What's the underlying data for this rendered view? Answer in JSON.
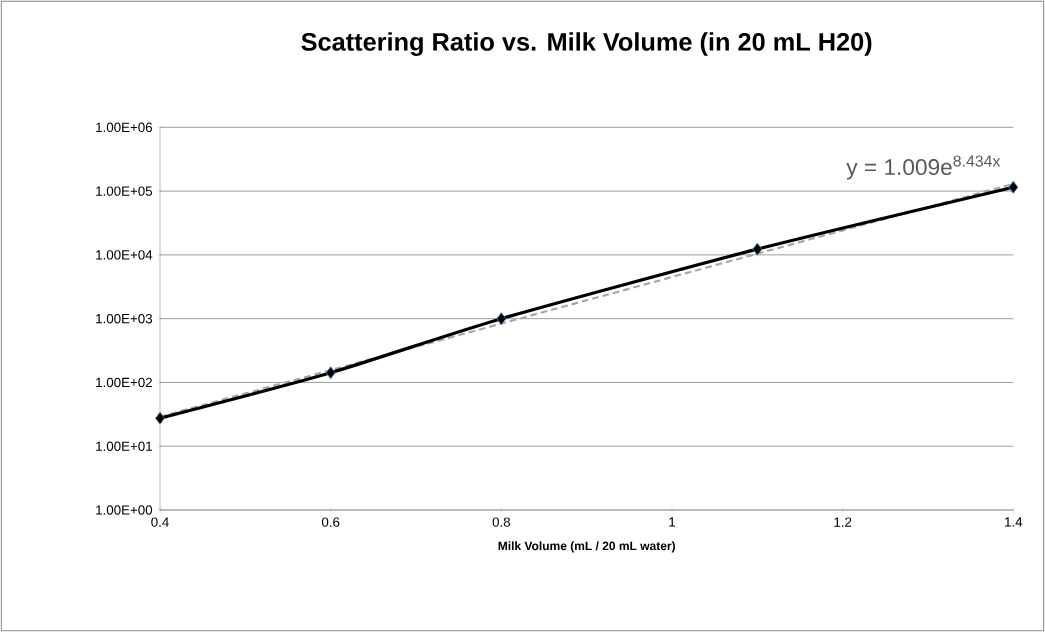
{
  "chart_data": {
    "type": "line",
    "title": "Scattering Ratio vs. Milk Volume (in 20 mL H20)",
    "xlabel": "Milk Volume (mL / 20 mL water)",
    "series": [
      {
        "color": "#a6a6a6",
        "line_style": "dashed",
        "marker": "none",
        "x": [
          0.4,
          1.4
        ],
        "values": [
          29,
          130000
        ]
      },
      {
        "color": "#000000",
        "line_style": "solid",
        "marker": "diamond",
        "x": [
          0.4,
          0.6,
          0.8,
          1.1,
          1.4
        ],
        "values": [
          27.5,
          142,
          1000,
          12300,
          115000
        ]
      }
    ],
    "annotations": [
      {
        "text": "y = 1.009e$^{8.434x}$",
        "x": 1.4,
        "y": 130000
      }
    ],
    "log": "y",
    "grid": "y",
    "xlim": [
      0.4,
      1.4
    ],
    "xticks": [
      0.4,
      0.6,
      0.8,
      1,
      1.2,
      1.4
    ],
    "ylim": [
      1,
      1000000
    ],
    "yticks": [
      {
        "value": 1,
        "label": "1.00E+00"
      },
      {
        "value": 10,
        "label": "1.00E+01"
      },
      {
        "value": 100,
        "label": "1.00E+02"
      },
      {
        "value": 1000,
        "label": "1.00E+03"
      },
      {
        "value": 10000,
        "label": "1.00E+04"
      },
      {
        "value": 100000,
        "label": "1.00E+05"
      },
      {
        "value": 1000000,
        "label": "1.00E+06"
      }
    ]
  }
}
